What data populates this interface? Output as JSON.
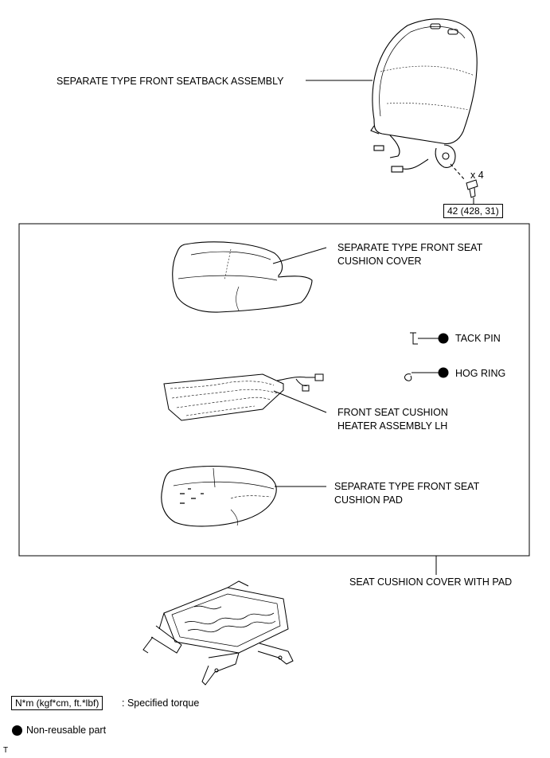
{
  "labels": {
    "seatback": "SEPARATE TYPE FRONT SEATBACK ASSEMBLY",
    "cover_line1": "SEPARATE TYPE FRONT SEAT",
    "cover_line2": "CUSHION COVER",
    "tack_pin": "TACK PIN",
    "hog_ring": "HOG RING",
    "heater_line1": "FRONT SEAT CUSHION",
    "heater_line2": "HEATER ASSEMBLY LH",
    "pad_line1": "SEPARATE TYPE FRONT SEAT",
    "pad_line2": "CUSHION PAD",
    "cover_with_pad": "SEAT CUSHION COVER WITH PAD",
    "bolt_qty": "x 4",
    "torque_value": "42 (428, 31)"
  },
  "legend": {
    "torque_unit": "N*m (kgf*cm, ft.*lbf)",
    "torque_desc": ": Specified torque",
    "nonreusable": "Non-reusable part",
    "corner_mark": "T"
  },
  "icons": {
    "non_reusable_marker": "filled-circle",
    "tack_pin": "tack-pin-icon",
    "hog_ring": "hog-ring-icon"
  }
}
